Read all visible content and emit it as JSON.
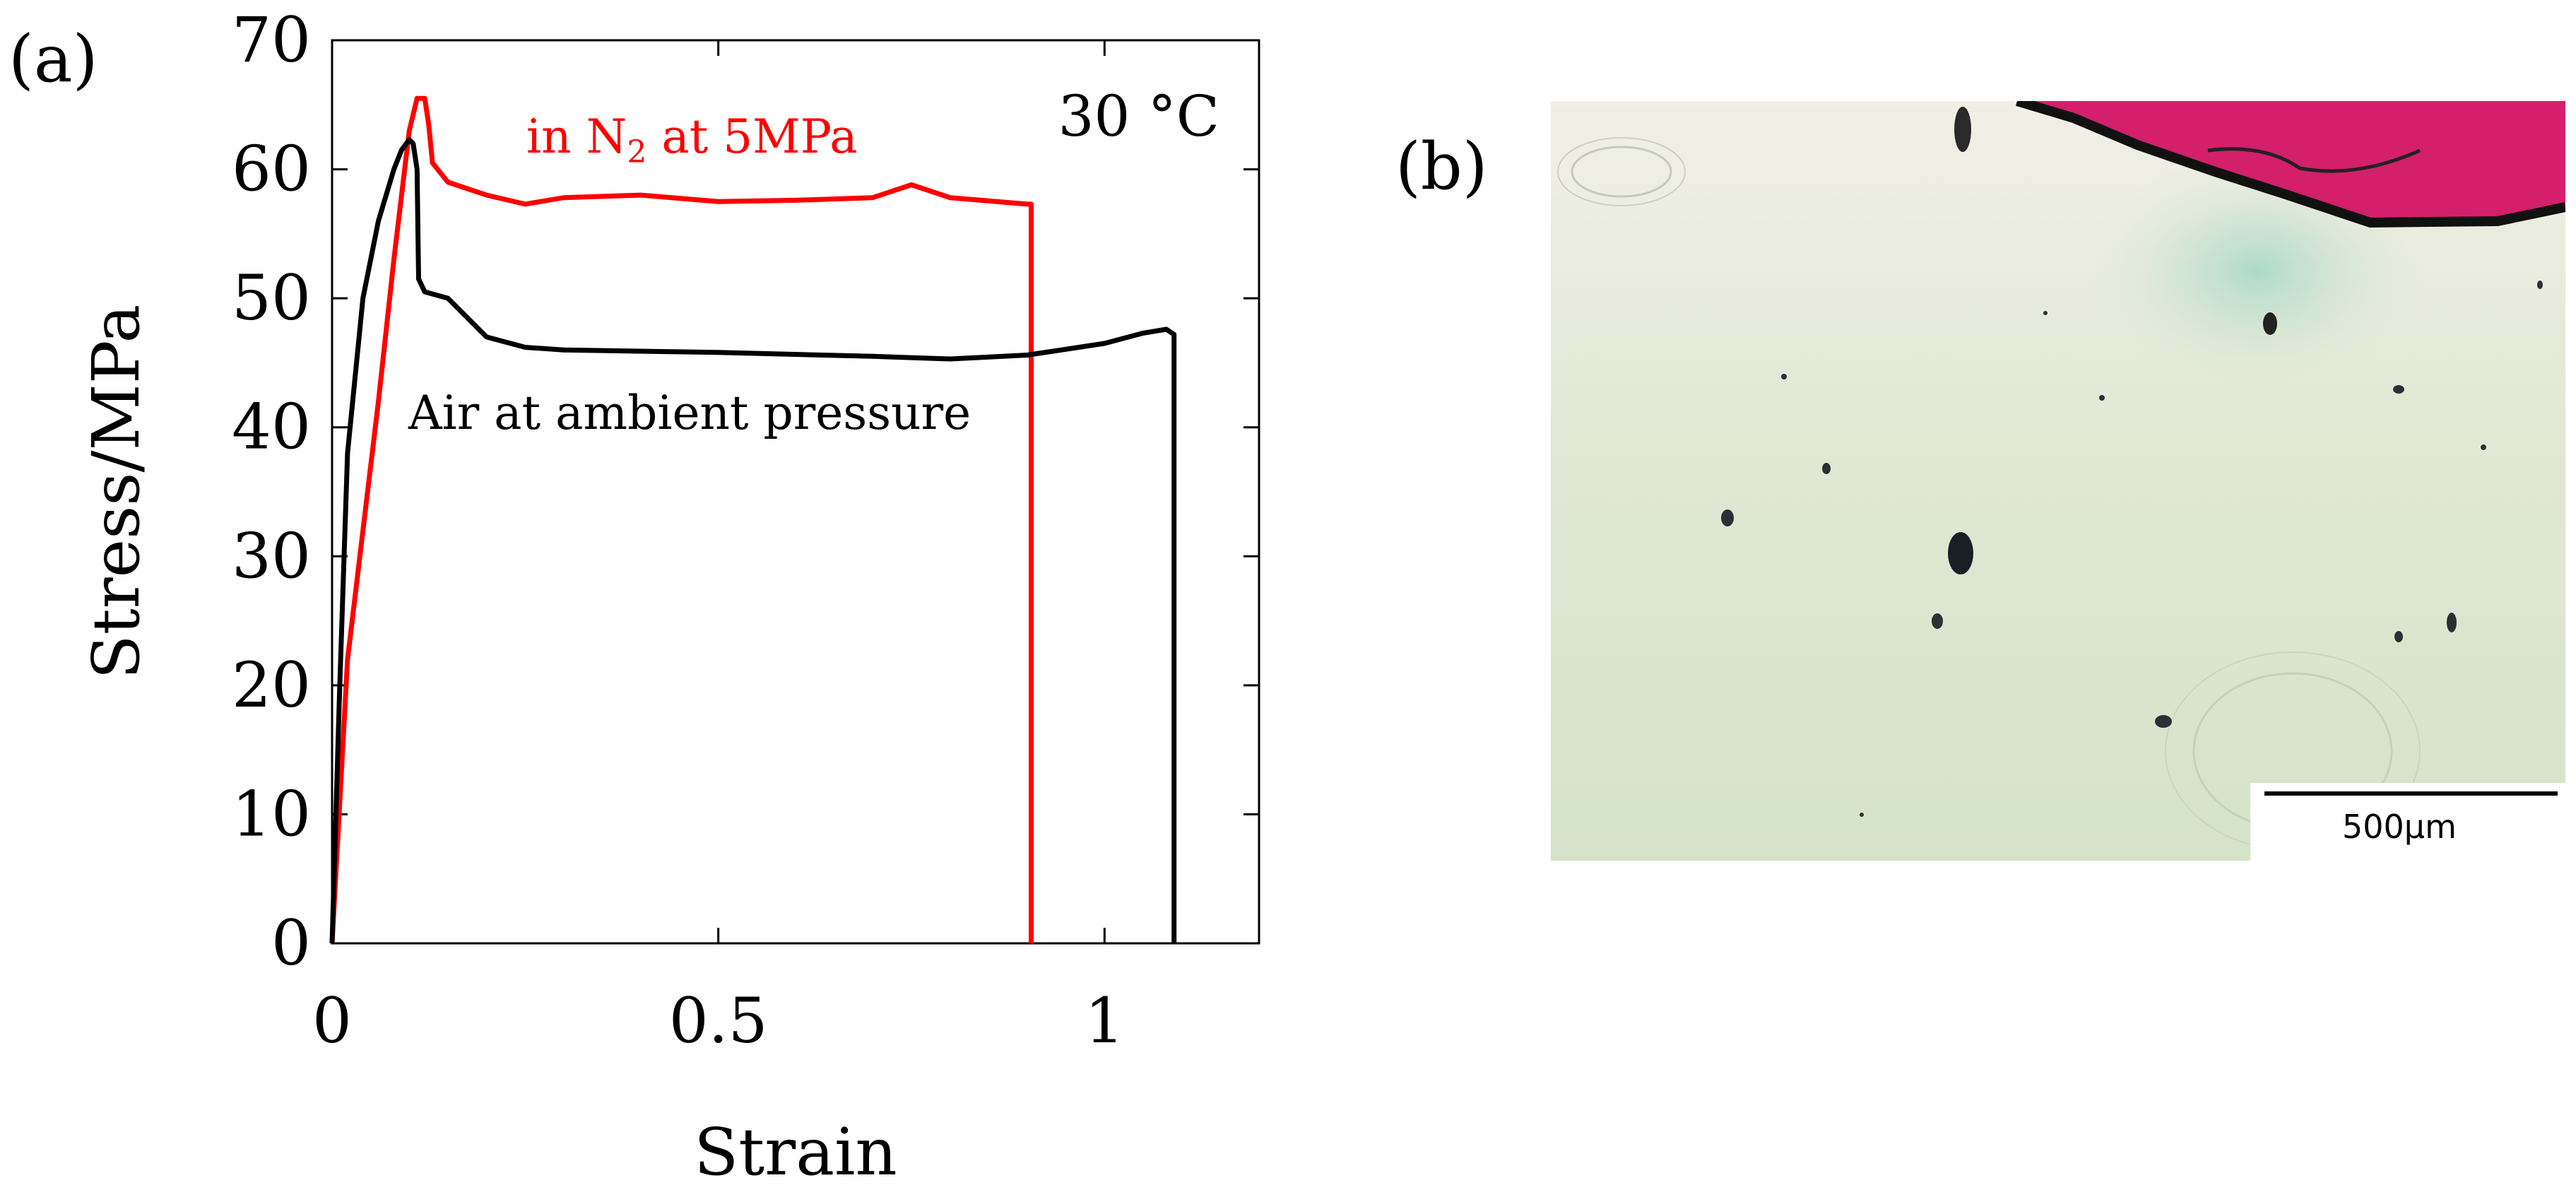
{
  "panel_a": {
    "label": "(a)"
  },
  "panel_b": {
    "label": "(b)",
    "scale_bar_label": "500μm",
    "colors": {
      "cut_region": "#d41f6a",
      "background": "#dfe8d2",
      "tint": "#a9d9c9"
    }
  },
  "chart_data": {
    "type": "line",
    "title": "",
    "annotation": "30 °C",
    "xlabel": "Strain",
    "ylabel": "Stress/MPa",
    "xlim": [
      0,
      1.2
    ],
    "ylim": [
      0,
      70
    ],
    "xticks": [
      0,
      0.5,
      1
    ],
    "xtick_labels": [
      "0",
      "0.5",
      "1"
    ],
    "yticks": [
      0,
      10,
      20,
      30,
      40,
      50,
      60,
      70
    ],
    "ytick_labels": [
      "0",
      "10",
      "20",
      "30",
      "40",
      "50",
      "60",
      "70"
    ],
    "series": [
      {
        "name": "in N2 at 5MPa",
        "label_main": "in N",
        "label_sub": "2",
        "label_tail": " at 5MPa",
        "color": "#ff0000",
        "x": [
          0,
          0.02,
          0.04,
          0.06,
          0.08,
          0.1,
          0.11,
          0.12,
          0.125,
          0.13,
          0.15,
          0.2,
          0.25,
          0.3,
          0.4,
          0.5,
          0.6,
          0.7,
          0.75,
          0.8,
          0.9,
          0.905,
          0.905
        ],
        "y": [
          0,
          22,
          32,
          42,
          53,
          63,
          65.5,
          65.5,
          63.5,
          60.5,
          59,
          58,
          57.3,
          57.8,
          58,
          57.5,
          57.6,
          57.8,
          58.8,
          57.8,
          57.3,
          57.3,
          0
        ]
      },
      {
        "name": "Air at ambient pressure",
        "label_main": "Air at ambient pressure",
        "label_sub": "",
        "label_tail": "",
        "color": "#000000",
        "x": [
          0,
          0.01,
          0.02,
          0.04,
          0.06,
          0.08,
          0.09,
          0.1,
          0.105,
          0.11,
          0.112,
          0.12,
          0.15,
          0.2,
          0.25,
          0.3,
          0.5,
          0.7,
          0.8,
          0.9,
          1.0,
          1.05,
          1.08,
          1.09,
          1.09
        ],
        "y": [
          0,
          20,
          38,
          50,
          56,
          60,
          61.5,
          62.3,
          62,
          60,
          51.5,
          50.5,
          50,
          47,
          46.2,
          46,
          45.8,
          45.5,
          45.3,
          45.6,
          46.5,
          47.3,
          47.6,
          47.2,
          0
        ]
      }
    ]
  }
}
